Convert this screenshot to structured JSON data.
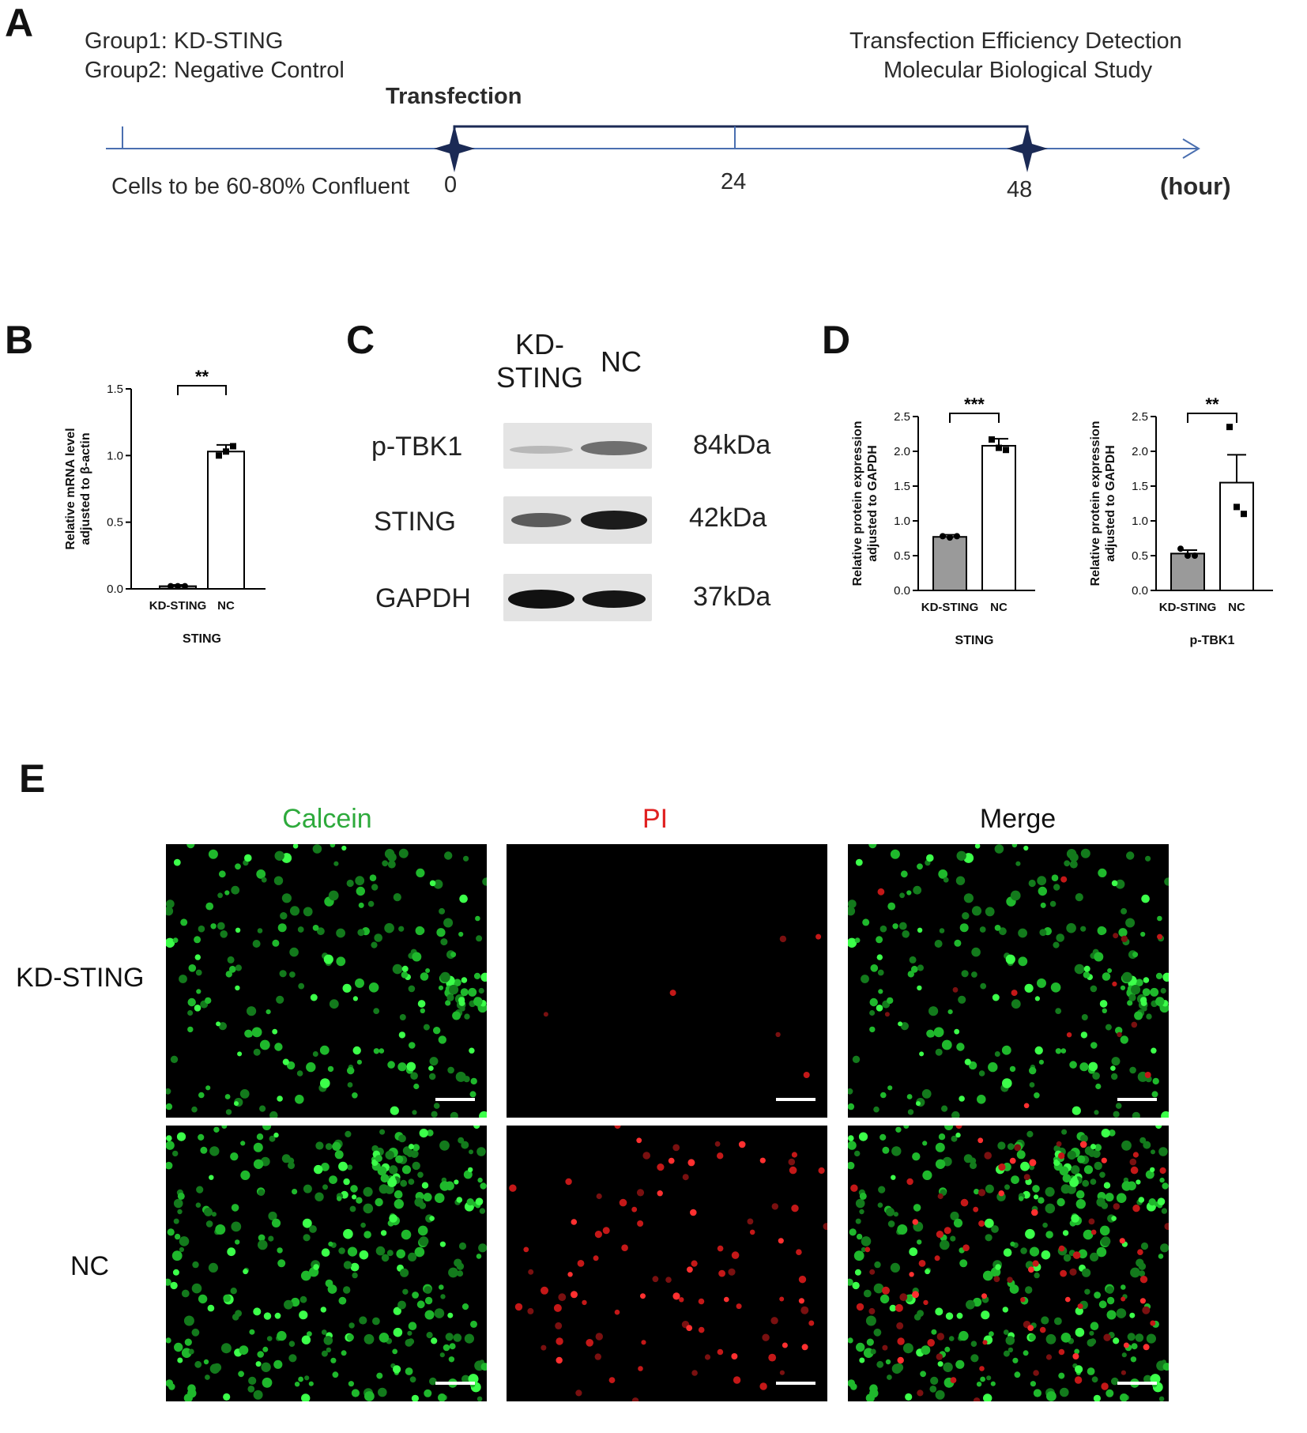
{
  "panels": {
    "a": {
      "label": "A",
      "group1": "Group1: KD-STING",
      "group2": "Group2: Negative Control",
      "transfection": "Transfection",
      "detect1": "Transfection Efficiency Detection",
      "detect2": "Molecular Biological Study",
      "start_text": "Cells to be 60-80% Confluent",
      "tick_0": "0",
      "tick_24": "24",
      "tick_48": "48",
      "unit": "(hour)",
      "colors": {
        "axis": "#4a6fb0",
        "marker": "#1b2a55",
        "bracket": "#1b2a55"
      }
    },
    "b": {
      "label": "B"
    },
    "c": {
      "label": "C",
      "lane1": "KD-\nSTING",
      "lane2": "NC",
      "rows": [
        {
          "name": "p-TBK1",
          "kda": "84kDa",
          "band1": 0.12,
          "band2": 0.45
        },
        {
          "name": "STING",
          "kda": "42kDa",
          "band1": 0.55,
          "band2": 0.95
        },
        {
          "name": "GAPDH",
          "kda": "37kDa",
          "band1": 0.95,
          "band2": 0.9
        }
      ]
    },
    "d": {
      "label": "D"
    },
    "e": {
      "label": "E",
      "cols": [
        {
          "name": "Calcein",
          "color": "#2eaa3c"
        },
        {
          "name": "PI",
          "color": "#e02020"
        },
        {
          "name": "Merge",
          "color": "#111111"
        }
      ],
      "rows": [
        "KD-STING",
        "NC"
      ]
    }
  },
  "chart_data": [
    {
      "id": "b",
      "type": "bar",
      "categories": [
        "KD-STING",
        "NC"
      ],
      "values": [
        0.02,
        1.03
      ],
      "errors": [
        0.01,
        0.05
      ],
      "points": [
        [
          0.02,
          0.02,
          0.02
        ],
        [
          1.0,
          1.03,
          1.07
        ]
      ],
      "bar_colors": [
        "#9a9a9a",
        "#ffffff"
      ],
      "ylabel": "Relative mRNA level adjusted to β-actin",
      "xlabel": "STING",
      "yticks": [
        "0.0",
        "0.5",
        "1.0",
        "1.5"
      ],
      "ylim": [
        0,
        1.5
      ],
      "significance": "**"
    },
    {
      "id": "d1",
      "type": "bar",
      "categories": [
        "KD-STING",
        "NC"
      ],
      "values": [
        0.77,
        2.08
      ],
      "errors": [
        0.03,
        0.1
      ],
      "points": [
        [
          0.78,
          0.76,
          0.78
        ],
        [
          2.17,
          2.05,
          2.02
        ]
      ],
      "bar_colors": [
        "#9a9a9a",
        "#ffffff"
      ],
      "ylabel": "Relative protein expression adjusted to GAPDH",
      "xlabel": "STING",
      "yticks": [
        "0.0",
        "0.5",
        "1.0",
        "1.5",
        "2.0",
        "2.5"
      ],
      "ylim": [
        0,
        2.5
      ],
      "significance": "***"
    },
    {
      "id": "d2",
      "type": "bar",
      "categories": [
        "KD-STING",
        "NC"
      ],
      "values": [
        0.53,
        1.55
      ],
      "errors": [
        0.05,
        0.4
      ],
      "points": [
        [
          0.6,
          0.5,
          0.5
        ],
        [
          2.35,
          1.2,
          1.1
        ]
      ],
      "bar_colors": [
        "#9a9a9a",
        "#ffffff"
      ],
      "ylabel": "Relative protein expression adjusted to GAPDH",
      "xlabel": "p-TBK1",
      "yticks": [
        "0.0",
        "0.5",
        "1.0",
        "1.5",
        "2.0",
        "2.5"
      ],
      "ylim": [
        0,
        2.5
      ],
      "significance": "**"
    }
  ]
}
